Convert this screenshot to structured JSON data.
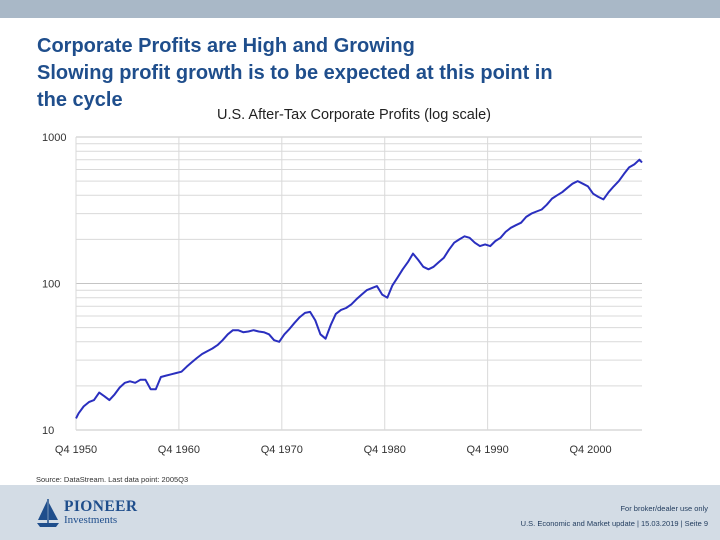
{
  "slide": {
    "title_lines": [
      "Corporate Profits are High and Growing",
      "Slowing profit growth is to be expected at this point in",
      "the cycle"
    ],
    "source": "Source: DataStream. Last data point: 2005Q3"
  },
  "footer": {
    "logo_name": "PIONEER",
    "logo_sub": "Investments",
    "disclaimer": "For broker/dealer use only",
    "meta": "U.S. Economic and Market update | 15.03.2019 | Seite 9"
  },
  "colors": {
    "title": "#1f4e8c",
    "line": "#2a2fbf",
    "footer_bg": "#d3dce5",
    "top_bar": "#a9b8c7"
  },
  "chart_data": {
    "type": "line",
    "title": "U.S. After-Tax Corporate Profits (log scale)",
    "xlabel": "",
    "ylabel": "",
    "y_scale": "log",
    "ylim": [
      10,
      1000
    ],
    "xlim": [
      1950.75,
      2005.75
    ],
    "y_ticks": [
      "1000",
      "100",
      "10"
    ],
    "x_ticks": [
      "Q4 1950",
      "Q4 1960",
      "Q4 1970",
      "Q4 1980",
      "Q4 1990",
      "Q4 2000"
    ],
    "grid": true,
    "series": [
      {
        "name": "U.S. After-Tax Corporate Profits",
        "x": [
          1950.75,
          1951.0,
          1951.5,
          1952.0,
          1952.5,
          1953.0,
          1953.5,
          1954.0,
          1954.5,
          1955.0,
          1955.5,
          1956.0,
          1956.5,
          1957.0,
          1957.5,
          1958.0,
          1958.5,
          1959.0,
          1959.5,
          1960.0,
          1960.5,
          1961.0,
          1961.5,
          1962.0,
          1962.5,
          1963.0,
          1963.5,
          1964.0,
          1964.5,
          1965.0,
          1965.5,
          1966.0,
          1966.5,
          1967.0,
          1967.5,
          1968.0,
          1968.5,
          1969.0,
          1969.5,
          1970.0,
          1970.5,
          1971.0,
          1971.5,
          1972.0,
          1972.5,
          1973.0,
          1973.5,
          1974.0,
          1974.5,
          1975.0,
          1975.5,
          1976.0,
          1976.5,
          1977.0,
          1977.5,
          1978.0,
          1978.5,
          1979.0,
          1979.5,
          1980.0,
          1980.5,
          1981.0,
          1981.5,
          1982.0,
          1982.5,
          1983.0,
          1983.5,
          1984.0,
          1984.5,
          1985.0,
          1985.5,
          1986.0,
          1986.5,
          1987.0,
          1987.5,
          1988.0,
          1988.5,
          1989.0,
          1989.5,
          1990.0,
          1990.5,
          1991.0,
          1991.5,
          1992.0,
          1992.5,
          1993.0,
          1993.5,
          1994.0,
          1994.5,
          1995.0,
          1995.5,
          1996.0,
          1996.5,
          1997.0,
          1997.5,
          1998.0,
          1998.5,
          1999.0,
          1999.5,
          2000.0,
          2000.5,
          2001.0,
          2001.5,
          2002.0,
          2002.5,
          2003.0,
          2003.5,
          2004.0,
          2004.5,
          2005.0,
          2005.5,
          2005.75
        ],
        "values": [
          12,
          13,
          14.5,
          15.5,
          16,
          18,
          17,
          16,
          17.5,
          19.5,
          21,
          21.5,
          21,
          22,
          22,
          19,
          19,
          23,
          23.5,
          24,
          24.5,
          25,
          27,
          29,
          31,
          33,
          34.5,
          36,
          38,
          41,
          45,
          48,
          48,
          46.5,
          47,
          48,
          47,
          46.5,
          45,
          41,
          40,
          45,
          49,
          54,
          59,
          63,
          64,
          56,
          45,
          42,
          52,
          62,
          66,
          68,
          72,
          78,
          84,
          90,
          93,
          96,
          84,
          80,
          97,
          110,
          125,
          140,
          160,
          145,
          130,
          125,
          130,
          140,
          150,
          170,
          190,
          200,
          210,
          205,
          190,
          180,
          185,
          180,
          195,
          205,
          225,
          240,
          250,
          260,
          285,
          300,
          310,
          320,
          345,
          380,
          400,
          420,
          450,
          480,
          500,
          480,
          460,
          410,
          390,
          375,
          420,
          460,
          500,
          560,
          620,
          650,
          700,
          670
        ]
      }
    ]
  }
}
